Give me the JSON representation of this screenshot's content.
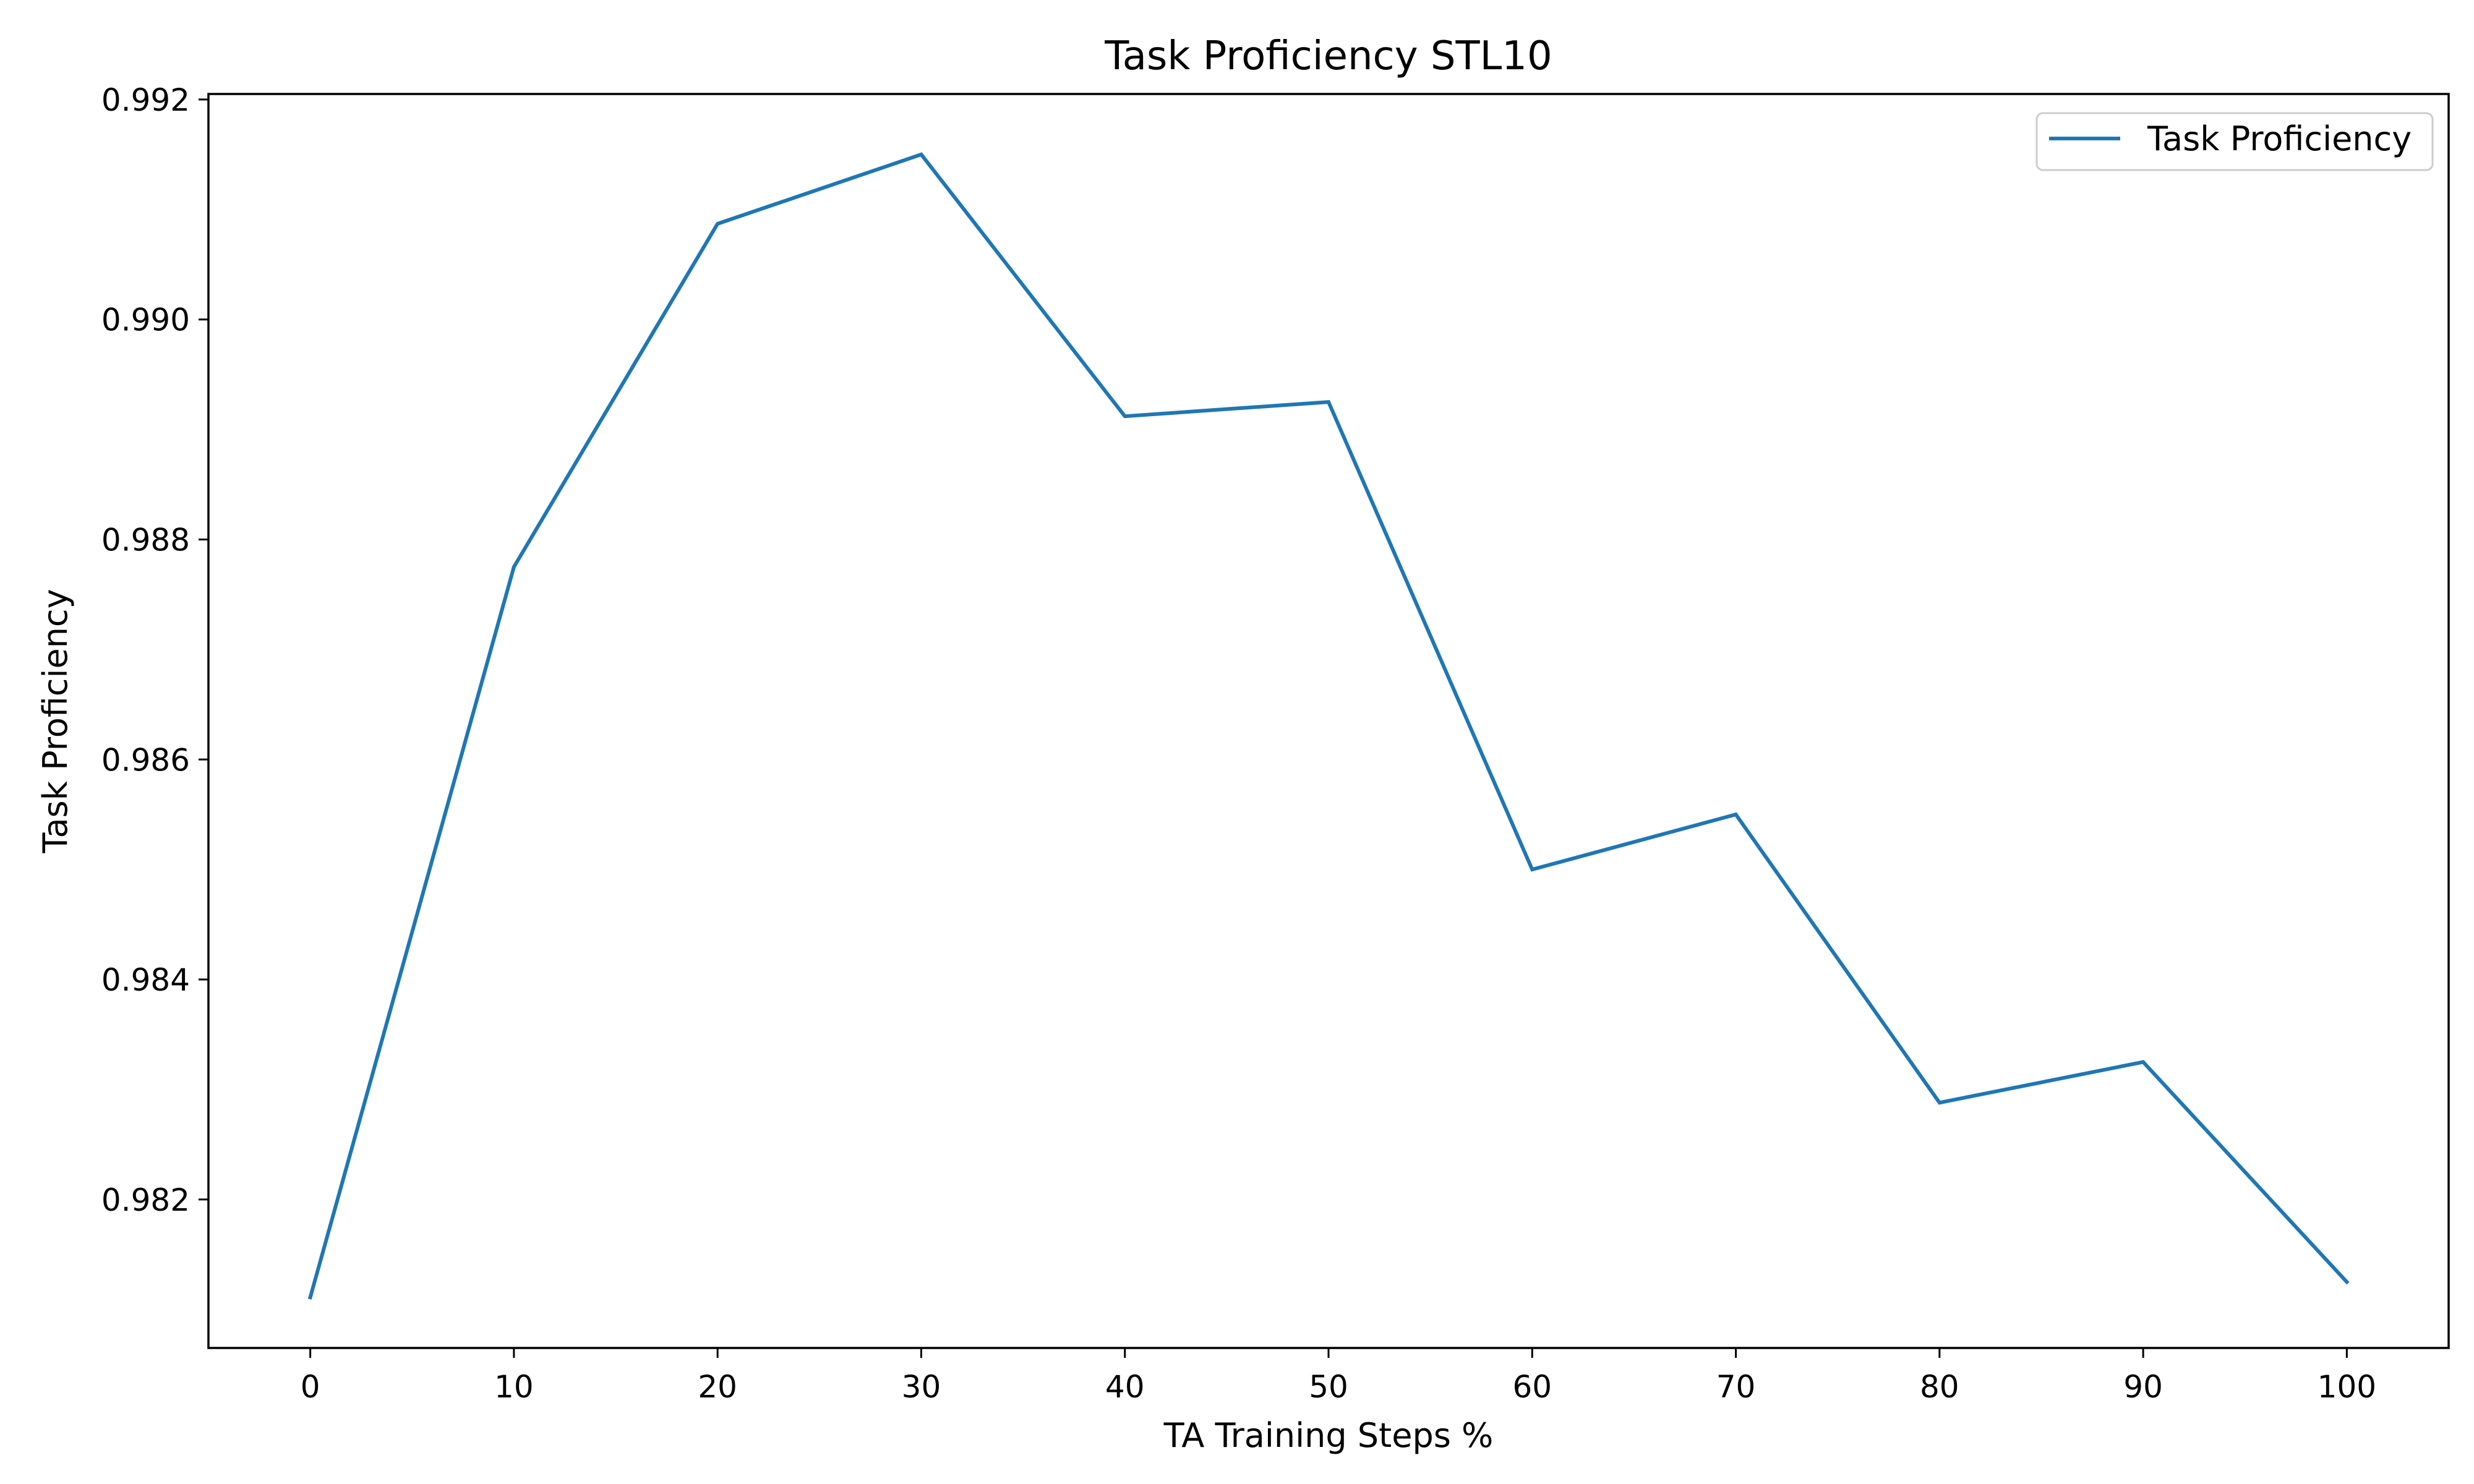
{
  "chart_data": {
    "type": "line",
    "title": "Task Proficiency STL10",
    "xlabel": "TA Training Steps %",
    "ylabel": "Task Proficiency",
    "x": [
      0,
      10,
      20,
      30,
      40,
      50,
      60,
      70,
      80,
      90,
      100
    ],
    "series": [
      {
        "name": "Task Proficiency",
        "color": "#1f77b4",
        "values": [
          0.98111,
          0.98775,
          0.99087,
          0.9915,
          0.98912,
          0.98925,
          0.985,
          0.9855,
          0.98288,
          0.98325,
          0.98125
        ]
      }
    ],
    "xlim": [
      -5,
      105
    ],
    "ylim": [
      0.98065,
      0.99205
    ],
    "xticks": [
      0,
      10,
      20,
      30,
      40,
      50,
      60,
      70,
      80,
      90,
      100
    ],
    "xtick_labels": [
      "0",
      "10",
      "20",
      "30",
      "40",
      "50",
      "60",
      "70",
      "80",
      "90",
      "100"
    ],
    "yticks": [
      0.982,
      0.984,
      0.986,
      0.988,
      0.99,
      0.992
    ],
    "ytick_labels": [
      "0.982",
      "0.984",
      "0.986",
      "0.988",
      "0.990",
      "0.992"
    ],
    "grid": false,
    "legend_position": "top-right"
  }
}
